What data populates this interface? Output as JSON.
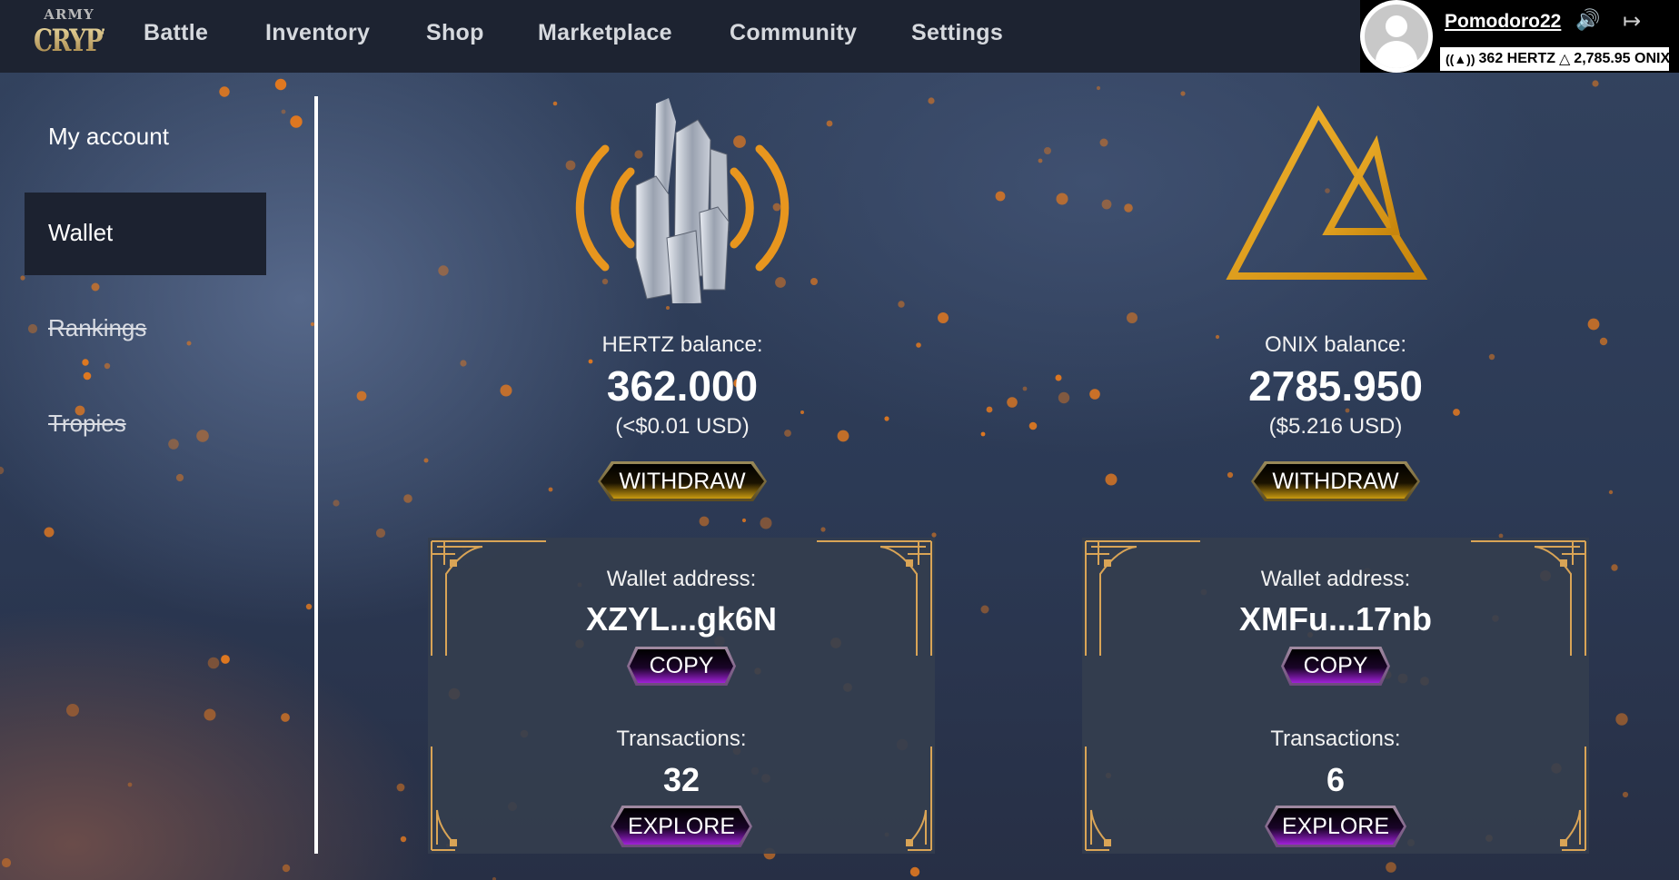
{
  "nav": {
    "logo_top": "ARMY",
    "logo_main": "CRYPTO",
    "items": [
      "Battle",
      "Inventory",
      "Shop",
      "Marketplace",
      "Community",
      "Settings"
    ]
  },
  "user": {
    "name": "Pomodoro22",
    "hertz": "362 HERTZ",
    "onix": "2,785.95 ONIX",
    "icons": [
      "avatar-icon",
      "speaker-icon",
      "logout-icon",
      "hertz-icon",
      "onix-icon"
    ]
  },
  "sidebar": {
    "items": [
      {
        "label": "My account",
        "state": "normal"
      },
      {
        "label": "Wallet",
        "state": "active"
      },
      {
        "label": "Rankings",
        "state": "disabled"
      },
      {
        "label": "Tropies",
        "state": "disabled"
      }
    ]
  },
  "wallets": [
    {
      "currency": "HERTZ",
      "balance_label": "HERTZ balance:",
      "balance": "362.000",
      "usd": "(<$0.01 USD)",
      "withdraw": "WITHDRAW",
      "address_label": "Wallet address:",
      "address": "XZYL...gk6N",
      "copy": "COPY",
      "tx_label": "Transactions:",
      "tx_count": "32",
      "explore": "EXPLORE",
      "icon": "crystal-signal-icon"
    },
    {
      "currency": "ONIX",
      "balance_label": "ONIX balance:",
      "balance": "2785.950",
      "usd": "($5.216 USD)",
      "withdraw": "WITHDRAW",
      "address_label": "Wallet address:",
      "address": "XMFu...17nb",
      "copy": "COPY",
      "tx_label": "Transactions:",
      "tx_count": "6",
      "explore": "EXPLORE",
      "icon": "onix-triangle-icon"
    }
  ],
  "colors": {
    "navbar": "#1d2331",
    "accent_gold": "#e8a020",
    "button_purple": "#a020d8",
    "particle_orange": "#e07820"
  }
}
